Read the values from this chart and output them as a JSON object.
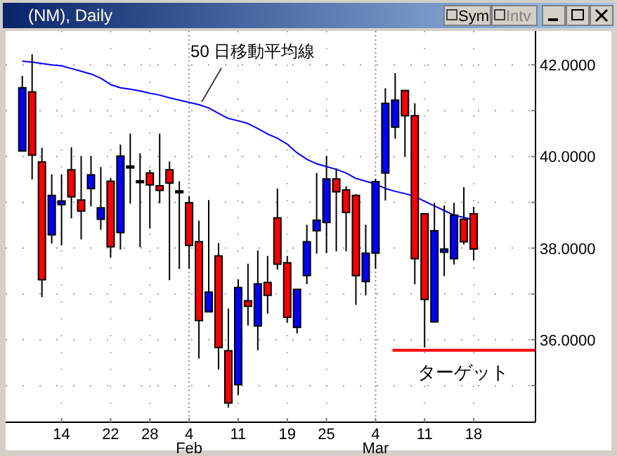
{
  "chart_data": {
    "type": "candlestick",
    "title": "(NM), Daily",
    "annotations": [
      "50 日移動平均線",
      "Sym",
      "Intv"
    ],
    "categories": [
      null,
      null,
      null,
      null,
      "14",
      null,
      null,
      null,
      null,
      "22",
      null,
      null,
      null,
      "28",
      null,
      null,
      null,
      "4\nFeb",
      null,
      null,
      null,
      null,
      "11",
      null,
      null,
      null,
      null,
      "19",
      null,
      null,
      null,
      "25",
      null,
      null,
      null,
      null,
      "4\nMar",
      null,
      null,
      null,
      null,
      "11",
      null,
      null,
      null,
      null,
      "18"
    ],
    "ohlc": [
      [
        40.12,
        41.76,
        40.12,
        41.5
      ],
      [
        41.41,
        42.23,
        39.5,
        40.03
      ],
      [
        39.88,
        40.19,
        36.93,
        37.31
      ],
      [
        38.29,
        39.61,
        38.1,
        39.15
      ],
      [
        38.95,
        39.61,
        38.06,
        39.03
      ],
      [
        39.71,
        40.2,
        38.65,
        39.12
      ],
      [
        39.05,
        40.01,
        38.19,
        38.81
      ],
      [
        39.3,
        40.01,
        38.91,
        39.6
      ],
      [
        38.63,
        39.77,
        38.4,
        38.88
      ],
      [
        39.46,
        39.53,
        37.79,
        38.03
      ],
      [
        38.34,
        40.26,
        37.97,
        40.01
      ],
      [
        39.79,
        40.5,
        38.97,
        39.75
      ],
      [
        39.47,
        40.07,
        38.02,
        39.43
      ],
      [
        39.64,
        39.71,
        38.43,
        39.38
      ],
      [
        39.36,
        40.5,
        38.98,
        39.26
      ],
      [
        39.71,
        39.89,
        37.3,
        39.42
      ],
      [
        39.25,
        39.46,
        37.55,
        39.21
      ],
      [
        38.99,
        39.13,
        37.55,
        38.06
      ],
      [
        38.14,
        38.6,
        35.59,
        36.42
      ],
      [
        36.61,
        39.05,
        36.61,
        37.04
      ],
      [
        37.83,
        38.11,
        35.35,
        35.83
      ],
      [
        35.76,
        36.68,
        34.52,
        34.62
      ],
      [
        35.02,
        37.32,
        34.79,
        37.14
      ],
      [
        36.85,
        37.66,
        36.31,
        36.73
      ],
      [
        36.3,
        37.95,
        35.77,
        37.22
      ],
      [
        37.25,
        37.83,
        36.57,
        36.97
      ],
      [
        38.66,
        39.3,
        37.53,
        37.65
      ],
      [
        37.68,
        37.83,
        36.37,
        36.49
      ],
      [
        36.27,
        37.1,
        36.14,
        37.1
      ],
      [
        37.4,
        38.51,
        37.21,
        38.14
      ],
      [
        38.38,
        39.64,
        37.88,
        38.61
      ],
      [
        38.56,
        40.01,
        37.89,
        39.51
      ],
      [
        39.51,
        39.74,
        37.93,
        39.23
      ],
      [
        39.27,
        39.35,
        37.93,
        38.78
      ],
      [
        39.15,
        39.18,
        36.76,
        37.4
      ],
      [
        37.27,
        38.51,
        36.97,
        37.89
      ],
      [
        37.89,
        39.51,
        37.55,
        39.45
      ],
      [
        39.64,
        41.49,
        39.04,
        41.16
      ],
      [
        40.64,
        41.82,
        40.39,
        41.23
      ],
      [
        41.44,
        41.44,
        39.99,
        40.89
      ],
      [
        40.89,
        41.16,
        37.21,
        37.77
      ],
      [
        38.75,
        38.75,
        35.83,
        36.88
      ],
      [
        36.39,
        38.99,
        36.39,
        38.38
      ],
      [
        37.91,
        38.93,
        37.39,
        37.98
      ],
      [
        37.77,
        38.99,
        37.64,
        38.72
      ],
      [
        38.63,
        39.33,
        38.08,
        38.14
      ],
      [
        38.75,
        38.9,
        37.73,
        37.98
      ]
    ],
    "colors": [
      "#0000ff",
      "#ff0000",
      "#ff0000",
      "#0000ff",
      "#0000ff",
      "#ff0000",
      "#ff0000",
      "#0000ff",
      "#0000ff",
      "#ff0000",
      "#0000ff",
      "#000000",
      "#000000",
      "#ff0000",
      "#ff0000",
      "#ff0000",
      "#000000",
      "#ff0000",
      "#ff0000",
      "#0000ff",
      "#ff0000",
      "#ff0000",
      "#0000ff",
      "#ff0000",
      "#0000ff",
      "#ff0000",
      "#ff0000",
      "#ff0000",
      "#0000ff",
      "#0000ff",
      "#0000ff",
      "#0000ff",
      "#ff0000",
      "#ff0000",
      "#ff0000",
      "#0000ff",
      "#0000ff",
      "#0000ff",
      "#0000ff",
      "#ff0000",
      "#ff0000",
      "#ff0000",
      "#0000ff",
      "#0000ff",
      "#0000ff",
      "#ff0000",
      "#ff0000"
    ],
    "series": [
      {
        "type": "line",
        "color": "#0000ff",
        "values": [
          42.08,
          42.06,
          42.03,
          42.0,
          41.98,
          41.92,
          41.86,
          41.8,
          41.71,
          41.57,
          41.5,
          41.47,
          41.43,
          41.38,
          41.34,
          41.28,
          41.23,
          41.18,
          41.13,
          41.06,
          40.94,
          40.83,
          40.78,
          40.72,
          40.61,
          40.49,
          40.4,
          40.27,
          40.08,
          39.94,
          39.84,
          39.78,
          39.72,
          39.64,
          39.52,
          39.46,
          39.4,
          39.3,
          39.24,
          39.19,
          39.13,
          39.02,
          38.92,
          38.82,
          38.72,
          38.67,
          38.62
        ]
      }
    ],
    "ylim": [
      34.2,
      42.74
    ],
    "yticks": [
      {
        "value": 35,
        "label": null
      },
      {
        "value": 36,
        "label": "36.0000"
      },
      {
        "value": 37,
        "label": null
      },
      {
        "value": 38,
        "label": "38.0000"
      },
      {
        "value": 39,
        "label": null
      },
      {
        "value": 40,
        "label": "40.0000"
      },
      {
        "value": 41,
        "label": null
      },
      {
        "value": 42,
        "label": "42.0000"
      }
    ],
    "ref_lines": [
      {
        "axis": "y",
        "value": 35.77,
        "label": "ターゲット",
        "color": "#ff0000"
      }
    ],
    "grid": true
  }
}
